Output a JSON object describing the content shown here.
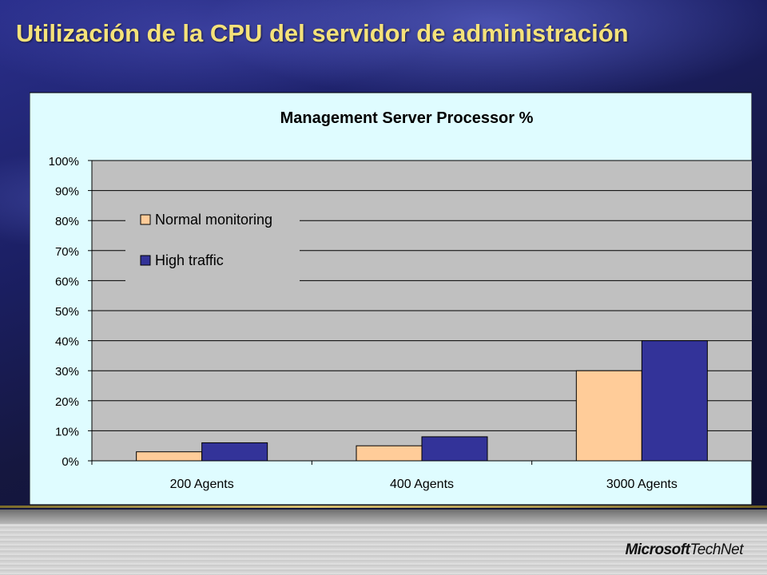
{
  "slide": {
    "title": "Utilización de la CPU del servidor de administración"
  },
  "branding": {
    "microsoft": "Microsoft",
    "technet": "TechNet"
  },
  "colors": {
    "title_text": "#f5e27a",
    "chart_area": "#dffcff",
    "plot_area": "#c0c0c0",
    "normal_series": "#ffcc99",
    "high_series": "#333399"
  },
  "chart_data": {
    "type": "bar",
    "title": "Management Server Processor %",
    "categories": [
      "200 Agents",
      "400 Agents",
      "3000 Agents"
    ],
    "series": [
      {
        "name": "Normal monitoring",
        "values": [
          3,
          5,
          30
        ],
        "color": "#ffcc99"
      },
      {
        "name": "High traffic",
        "values": [
          6,
          8,
          40
        ],
        "color": "#333399"
      }
    ],
    "ylim": [
      0,
      100
    ],
    "yticks": [
      "0%",
      "10%",
      "20%",
      "30%",
      "40%",
      "50%",
      "60%",
      "70%",
      "80%",
      "90%",
      "100%"
    ],
    "xlabel": "",
    "ylabel": "",
    "grid": true,
    "legend": "top-left"
  }
}
